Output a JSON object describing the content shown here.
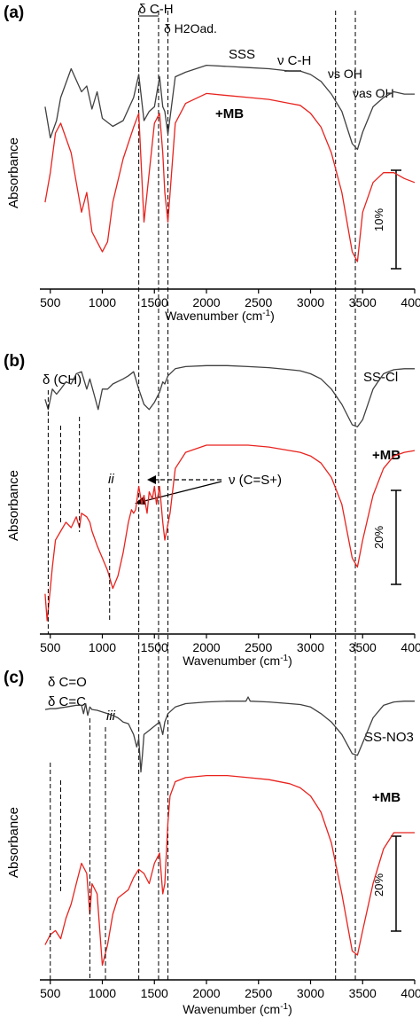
{
  "figure": {
    "xlabel_main": "Wavenumber (cm",
    "xlabel_sup": "-1",
    "xlabel_tail": ")",
    "ylabel": "Absorbance",
    "tick_labels": [
      "500",
      "1000",
      "1500",
      "2000",
      "2500",
      "3000",
      "3500",
      "4000"
    ],
    "colors": {
      "sample": "#404040",
      "mb": "#e8231e",
      "axis": "#000000"
    }
  },
  "chart_data": [
    {
      "type": "line",
      "panel_label": "(a)",
      "xlabel": "Wavenumber (cm-1)",
      "ylabel": "Absorbance",
      "xlim": [
        400,
        4000
      ],
      "ticks": [
        500,
        1000,
        1500,
        2000,
        2500,
        3000,
        3500,
        4000
      ],
      "scale_bar": "10%",
      "series": [
        {
          "name": "SSS",
          "color": "#404040",
          "x": [
            450,
            500,
            560,
            600,
            700,
            800,
            850,
            900,
            950,
            1000,
            1100,
            1200,
            1300,
            1350,
            1400,
            1450,
            1500,
            1550,
            1580,
            1600,
            1630,
            1700,
            1800,
            2000,
            2200,
            2400,
            2600,
            2800,
            2900,
            3000,
            3100,
            3200,
            3300,
            3400,
            3450,
            3500,
            3600,
            3700,
            3800,
            3900,
            4000
          ],
          "y": [
            0.58,
            0.85,
            0.7,
            0.5,
            0.25,
            0.45,
            0.4,
            0.6,
            0.45,
            0.68,
            0.75,
            0.7,
            0.5,
            0.3,
            0.7,
            0.62,
            0.58,
            0.32,
            0.58,
            0.62,
            0.82,
            0.32,
            0.28,
            0.22,
            0.23,
            0.24,
            0.25,
            0.27,
            0.27,
            0.3,
            0.36,
            0.47,
            0.62,
            0.9,
            0.95,
            0.8,
            0.58,
            0.5,
            0.45,
            0.47,
            0.47
          ]
        },
        {
          "name": "+MB",
          "color": "#e8231e",
          "x": [
            450,
            500,
            550,
            600,
            700,
            750,
            800,
            850,
            900,
            950,
            1000,
            1050,
            1100,
            1200,
            1300,
            1350,
            1400,
            1450,
            1500,
            1550,
            1580,
            1600,
            1630,
            1700,
            1800,
            2000,
            2200,
            2400,
            2600,
            2800,
            2900,
            3000,
            3100,
            3200,
            3300,
            3400,
            3450,
            3500,
            3600,
            3700,
            3800,
            3900,
            4000
          ],
          "y": [
            0.7,
            0.55,
            0.35,
            0.3,
            0.45,
            0.6,
            0.75,
            0.65,
            0.85,
            0.9,
            0.95,
            0.9,
            0.7,
            0.48,
            0.32,
            0.25,
            0.8,
            0.55,
            0.3,
            0.25,
            0.45,
            0.65,
            0.8,
            0.3,
            0.2,
            0.15,
            0.16,
            0.17,
            0.18,
            0.2,
            0.21,
            0.25,
            0.32,
            0.45,
            0.65,
            0.95,
            1.0,
            0.75,
            0.6,
            0.55,
            0.55,
            0.58,
            0.6
          ]
        }
      ],
      "annotations": [
        "δ C-H",
        "δ H2Oad.",
        "SSS",
        "ν C-H",
        "νs OH",
        "νas OH",
        "+MB"
      ]
    },
    {
      "type": "line",
      "panel_label": "(b)",
      "xlabel": "Wavenumber (cm-1)",
      "ylabel": "Absorbance",
      "xlim": [
        400,
        4000
      ],
      "ticks": [
        500,
        1000,
        1500,
        2000,
        2500,
        3000,
        3500,
        4000
      ],
      "scale_bar": "20%",
      "series": [
        {
          "name": "SS-Cl",
          "color": "#404040",
          "x": [
            450,
            480,
            520,
            560,
            600,
            650,
            700,
            750,
            800,
            850,
            880,
            920,
            960,
            1000,
            1050,
            1100,
            1200,
            1250,
            1300,
            1350,
            1400,
            1450,
            1500,
            1550,
            1580,
            1600,
            1630,
            1700,
            1800,
            2000,
            2200,
            2400,
            2600,
            2800,
            2900,
            3000,
            3100,
            3200,
            3300,
            3400,
            3450,
            3500,
            3600,
            3700,
            3800,
            3900,
            4000
          ],
          "y": [
            0.35,
            0.45,
            0.25,
            0.3,
            0.25,
            0.18,
            0.2,
            0.1,
            0.08,
            0.25,
            0.15,
            0.3,
            0.45,
            0.25,
            0.25,
            0.2,
            0.15,
            0.12,
            0.08,
            0.25,
            0.4,
            0.45,
            0.38,
            0.28,
            0.18,
            0.2,
            0.12,
            0.05,
            0.03,
            0.02,
            0.02,
            0.03,
            0.04,
            0.06,
            0.07,
            0.1,
            0.15,
            0.25,
            0.4,
            0.6,
            0.62,
            0.55,
            0.25,
            0.1,
            0.06,
            0.05,
            0.05
          ]
        },
        {
          "name": "+MB",
          "color": "#e8231e",
          "x": [
            450,
            470,
            500,
            520,
            550,
            600,
            650,
            700,
            750,
            780,
            800,
            850,
            880,
            900,
            950,
            1000,
            1050,
            1100,
            1150,
            1200,
            1250,
            1280,
            1300,
            1320,
            1350,
            1380,
            1400,
            1430,
            1450,
            1480,
            1500,
            1520,
            1550,
            1580,
            1600,
            1650,
            1700,
            1800,
            2000,
            2200,
            2400,
            2600,
            2800,
            2900,
            3000,
            3100,
            3200,
            3300,
            3400,
            3450,
            3500,
            3600,
            3700,
            3800,
            3900,
            4000
          ],
          "y": [
            0.85,
            1.0,
            0.82,
            0.7,
            0.55,
            0.5,
            0.45,
            0.48,
            0.42,
            0.48,
            0.4,
            0.42,
            0.45,
            0.5,
            0.58,
            0.65,
            0.72,
            0.82,
            0.75,
            0.62,
            0.45,
            0.38,
            0.4,
            0.38,
            0.25,
            0.35,
            0.3,
            0.4,
            0.28,
            0.32,
            0.25,
            0.35,
            0.25,
            0.45,
            0.55,
            0.4,
            0.15,
            0.06,
            0.02,
            0.02,
            0.02,
            0.03,
            0.05,
            0.06,
            0.08,
            0.12,
            0.2,
            0.35,
            0.65,
            0.7,
            0.55,
            0.3,
            0.15,
            0.08,
            0.06,
            0.05
          ]
        }
      ],
      "annotations": [
        "δ (CH)",
        "SS-Cl",
        "+MB",
        "ii",
        "ν (C=S+)"
      ]
    },
    {
      "type": "line",
      "panel_label": "(c)",
      "xlabel": "Wavenumber (cm-1)",
      "ylabel": "Absorbance",
      "xlim": [
        400,
        4000
      ],
      "ticks": [
        500,
        1000,
        1500,
        2000,
        2500,
        3000,
        3500,
        4000
      ],
      "scale_bar": "20%",
      "series": [
        {
          "name": "SS-NO3",
          "color": "#404040",
          "x": [
            450,
            500,
            550,
            600,
            650,
            700,
            750,
            800,
            820,
            840,
            860,
            880,
            900,
            950,
            1000,
            1050,
            1100,
            1150,
            1200,
            1250,
            1300,
            1330,
            1350,
            1370,
            1385,
            1400,
            1450,
            1500,
            1550,
            1580,
            1600,
            1630,
            1700,
            1800,
            2000,
            2200,
            2380,
            2400,
            2420,
            2600,
            2800,
            2900,
            3000,
            3100,
            3200,
            3300,
            3400,
            3450,
            3500,
            3600,
            3700,
            3800,
            3900,
            4000
          ],
          "y": [
            0.15,
            0.14,
            0.14,
            0.13,
            0.12,
            0.11,
            0.1,
            0.1,
            0.2,
            0.08,
            0.22,
            0.12,
            0.15,
            0.16,
            0.18,
            0.2,
            0.22,
            0.25,
            0.3,
            0.32,
            0.45,
            0.6,
            0.5,
            0.9,
            0.7,
            0.45,
            0.4,
            0.35,
            0.3,
            0.45,
            0.3,
            0.2,
            0.12,
            0.08,
            0.06,
            0.05,
            0.05,
            0.0,
            0.05,
            0.06,
            0.08,
            0.09,
            0.12,
            0.2,
            0.3,
            0.45,
            0.68,
            0.7,
            0.55,
            0.25,
            0.1,
            0.06,
            0.05,
            0.05
          ]
        },
        {
          "name": "+MB",
          "color": "#e8231e",
          "x": [
            450,
            500,
            550,
            600,
            650,
            700,
            750,
            800,
            850,
            880,
            900,
            950,
            1000,
            1050,
            1100,
            1150,
            1200,
            1250,
            1300,
            1350,
            1400,
            1450,
            1500,
            1550,
            1580,
            1600,
            1630,
            1650,
            1700,
            1800,
            2000,
            2200,
            2400,
            2600,
            2800,
            2900,
            3000,
            3100,
            3200,
            3300,
            3400,
            3450,
            3500,
            3600,
            3700,
            3800,
            3900,
            4000
          ],
          "y": [
            0.85,
            0.8,
            0.78,
            0.82,
            0.72,
            0.65,
            0.55,
            0.45,
            0.5,
            0.7,
            0.55,
            0.6,
            0.95,
            0.85,
            0.7,
            0.62,
            0.6,
            0.58,
            0.52,
            0.48,
            0.5,
            0.55,
            0.45,
            0.4,
            0.6,
            0.55,
            0.25,
            0.12,
            0.05,
            0.03,
            0.02,
            0.02,
            0.03,
            0.04,
            0.06,
            0.08,
            0.12,
            0.2,
            0.35,
            0.6,
            0.88,
            0.9,
            0.78,
            0.55,
            0.38,
            0.3,
            0.3,
            0.3
          ]
        }
      ],
      "annotations": [
        "δ C=O",
        "δ C=C",
        "iii",
        "SS-NO3",
        "+MB"
      ]
    }
  ]
}
